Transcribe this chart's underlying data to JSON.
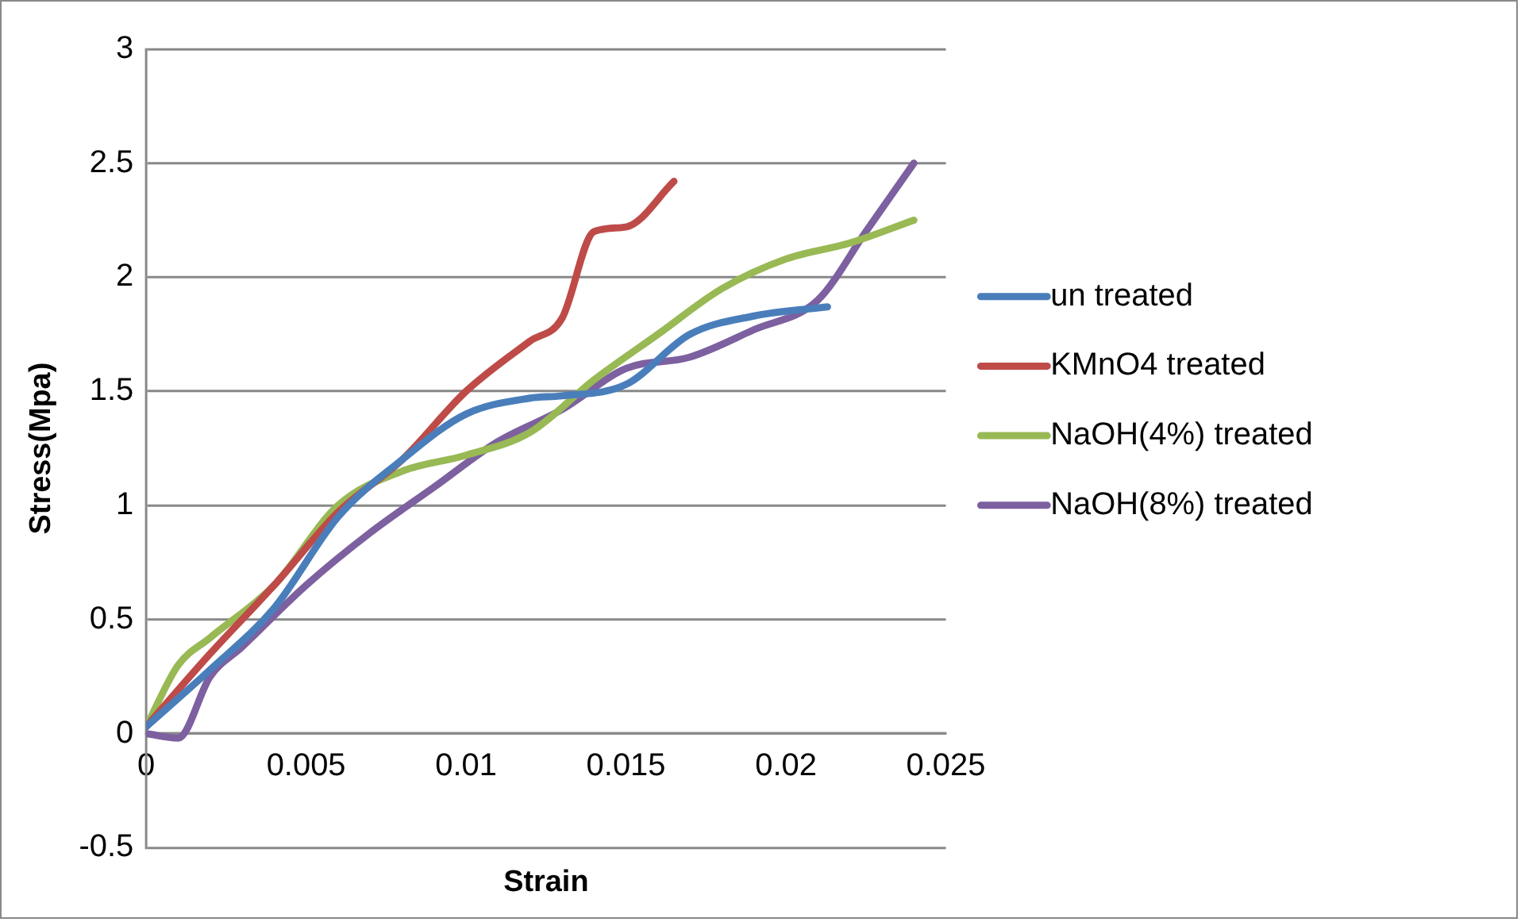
{
  "chart_data": {
    "type": "line",
    "xlabel": "Strain",
    "ylabel": "Stress(Mpa)",
    "xlim": [
      0,
      0.025
    ],
    "xticks": [
      {
        "value": 0,
        "label": "0"
      },
      0.005,
      0.01,
      0.015,
      0.02,
      0.025
    ],
    "ylim": [
      -0.5,
      3
    ],
    "yticks": [
      -0.5,
      0,
      0.5,
      1,
      1.5,
      2,
      2.5,
      3
    ],
    "grid": "y",
    "legend": "right",
    "marker": "none",
    "line_style": "solid",
    "series": [
      {
        "name": "un treated",
        "color": "#4a7ebb",
        "x": [
          0,
          0.002,
          0.004,
          0.006,
          0.008,
          0.01,
          0.012,
          0.013,
          0.015,
          0.017,
          0.019,
          0.0213
        ],
        "values": [
          0.03,
          0.28,
          0.55,
          0.95,
          1.2,
          1.4,
          1.47,
          1.48,
          1.53,
          1.75,
          1.83,
          1.87
        ]
      },
      {
        "name": "KMnO4 treated",
        "color": "#be4b48",
        "x": [
          0,
          0.002,
          0.004,
          0.006,
          0.008,
          0.01,
          0.012,
          0.013,
          0.014,
          0.015,
          0.0165
        ],
        "values": [
          0.03,
          0.35,
          0.65,
          0.97,
          1.2,
          1.5,
          1.72,
          1.82,
          2.2,
          2.22,
          2.42
        ]
      },
      {
        "name": "NaOH(4%) treated",
        "color": "#98b954",
        "x": [
          0,
          0.001,
          0.002,
          0.004,
          0.006,
          0.008,
          0.01,
          0.012,
          0.014,
          0.016,
          0.018,
          0.02,
          0.022,
          0.024
        ],
        "values": [
          0.03,
          0.3,
          0.42,
          0.65,
          1.0,
          1.15,
          1.22,
          1.32,
          1.55,
          1.75,
          1.95,
          2.08,
          2.15,
          2.25
        ]
      },
      {
        "name": "NaOH(8%) treated",
        "color": "#7d60a0",
        "x": [
          0,
          0.001,
          0.002,
          0.003,
          0.005,
          0.007,
          0.009,
          0.011,
          0.013,
          0.015,
          0.017,
          0.019,
          0.021,
          0.0225,
          0.024
        ],
        "values": [
          0,
          -0.02,
          0.25,
          0.38,
          0.65,
          0.88,
          1.08,
          1.28,
          1.42,
          1.6,
          1.65,
          1.77,
          1.9,
          2.2,
          2.5
        ]
      }
    ]
  }
}
